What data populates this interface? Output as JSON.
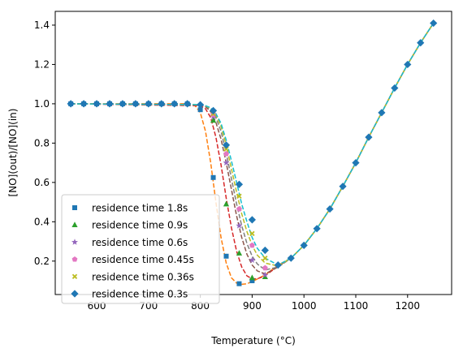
{
  "chart_data": {
    "type": "line",
    "xlabel": "Temperature (°C)",
    "ylabel": "[NO](out)/[NO](in)",
    "xlim": [
      520,
      1285
    ],
    "ylim": [
      0.03,
      1.47
    ],
    "xticks": [
      600,
      700,
      800,
      900,
      1000,
      1100,
      1200
    ],
    "yticks": [
      0.2,
      0.4,
      0.6,
      0.8,
      1.0,
      1.2,
      1.4
    ],
    "xtick_labels": [
      "600",
      "700",
      "800",
      "900",
      "1000",
      "1100",
      "1200"
    ],
    "ytick_labels": [
      "0.2",
      "0.4",
      "0.6",
      "0.8",
      "1.0",
      "1.2",
      "1.4"
    ],
    "grid": false,
    "legend_position": "lower-left",
    "high_temp": {
      "x": [
        950,
        975,
        1000,
        1025,
        1050,
        1075,
        1100,
        1125,
        1150,
        1175,
        1200,
        1225,
        1250
      ],
      "y": [
        0.18,
        0.215,
        0.28,
        0.365,
        0.465,
        0.58,
        0.7,
        0.83,
        0.955,
        1.08,
        1.2,
        1.31,
        1.41
      ]
    },
    "series": [
      {
        "name": "residence time 1.8s",
        "marker": "square",
        "color": "#1f77b4",
        "line_color": "#ff7f0e",
        "x": [
          550,
          575,
          600,
          625,
          650,
          675,
          700,
          725,
          750,
          775,
          800,
          825,
          850,
          875,
          900
        ],
        "y": [
          1.0,
          1.0,
          1.0,
          1.0,
          1.0,
          1.0,
          1.0,
          1.0,
          1.0,
          1.0,
          0.97,
          0.625,
          0.225,
          0.085,
          0.1
        ],
        "curve_x": [
          550,
          775,
          790,
          800,
          810,
          820,
          830,
          840,
          850,
          860,
          870,
          880,
          890,
          900,
          925,
          950
        ],
        "curve_y": [
          1.0,
          1.0,
          0.99,
          0.955,
          0.86,
          0.7,
          0.5,
          0.32,
          0.19,
          0.115,
          0.088,
          0.082,
          0.085,
          0.095,
          0.13,
          0.18
        ]
      },
      {
        "name": "residence time 0.9s",
        "marker": "triangle",
        "color": "#2ca02c",
        "line_color": "#d62728",
        "x": [
          825,
          850,
          875,
          900,
          925
        ],
        "y": [
          0.915,
          0.49,
          0.24,
          0.115,
          0.12
        ],
        "curve_x": [
          550,
          800,
          810,
          820,
          830,
          840,
          850,
          860,
          870,
          880,
          890,
          900,
          910,
          925,
          950
        ],
        "curve_y": [
          1.0,
          0.99,
          0.975,
          0.93,
          0.83,
          0.69,
          0.52,
          0.37,
          0.25,
          0.17,
          0.125,
          0.11,
          0.11,
          0.125,
          0.175
        ]
      },
      {
        "name": "residence time 0.6s",
        "marker": "star",
        "color": "#9467bd",
        "line_color": "#8c564b",
        "x": [
          825,
          850,
          875,
          900,
          925
        ],
        "y": [
          0.935,
          0.7,
          0.38,
          0.205,
          0.13
        ],
        "curve_x": [
          550,
          800,
          810,
          820,
          830,
          840,
          850,
          860,
          870,
          880,
          890,
          900,
          910,
          925,
          950
        ],
        "curve_y": [
          1.0,
          0.995,
          0.985,
          0.96,
          0.905,
          0.82,
          0.7,
          0.565,
          0.43,
          0.32,
          0.235,
          0.18,
          0.15,
          0.135,
          0.17
        ]
      },
      {
        "name": "residence time 0.45s",
        "marker": "pentagon",
        "color": "#e377c2",
        "line_color": "#7f7f7f",
        "x": [
          825,
          850,
          875,
          900,
          925
        ],
        "y": [
          0.945,
          0.745,
          0.465,
          0.28,
          0.165
        ],
        "curve_x": [
          550,
          800,
          810,
          820,
          830,
          840,
          850,
          860,
          870,
          880,
          890,
          900,
          910,
          925,
          950
        ],
        "curve_y": [
          1.0,
          0.995,
          0.99,
          0.97,
          0.93,
          0.86,
          0.75,
          0.62,
          0.49,
          0.38,
          0.29,
          0.225,
          0.185,
          0.155,
          0.17
        ]
      },
      {
        "name": "residence time 0.36s",
        "marker": "x",
        "color": "#bcbd22",
        "line_color": "#bcbd22",
        "x": [
          825,
          850,
          875,
          900,
          925
        ],
        "y": [
          0.95,
          0.77,
          0.53,
          0.34,
          0.215
        ],
        "curve_x": [
          550,
          800,
          810,
          820,
          830,
          840,
          850,
          860,
          870,
          880,
          890,
          900,
          910,
          925,
          950
        ],
        "curve_y": [
          1.0,
          0.995,
          0.99,
          0.975,
          0.945,
          0.885,
          0.79,
          0.67,
          0.55,
          0.44,
          0.35,
          0.28,
          0.23,
          0.19,
          0.175
        ]
      },
      {
        "name": "residence time 0.3s",
        "marker": "diamond",
        "color": "#1f77b4",
        "line_color": "#17becf",
        "x": [
          550,
          575,
          600,
          625,
          650,
          675,
          700,
          725,
          750,
          775,
          800,
          825,
          850,
          875,
          900,
          925
        ],
        "y": [
          1.0,
          1.0,
          1.0,
          1.0,
          1.0,
          1.0,
          1.0,
          1.0,
          1.0,
          1.0,
          0.995,
          0.965,
          0.79,
          0.59,
          0.41,
          0.255
        ],
        "curve_x": [
          550,
          800,
          810,
          820,
          830,
          840,
          850,
          860,
          870,
          880,
          890,
          900,
          910,
          925,
          950
        ],
        "curve_y": [
          1.0,
          0.995,
          0.99,
          0.98,
          0.95,
          0.9,
          0.815,
          0.71,
          0.6,
          0.49,
          0.4,
          0.32,
          0.265,
          0.215,
          0.18
        ]
      }
    ]
  }
}
